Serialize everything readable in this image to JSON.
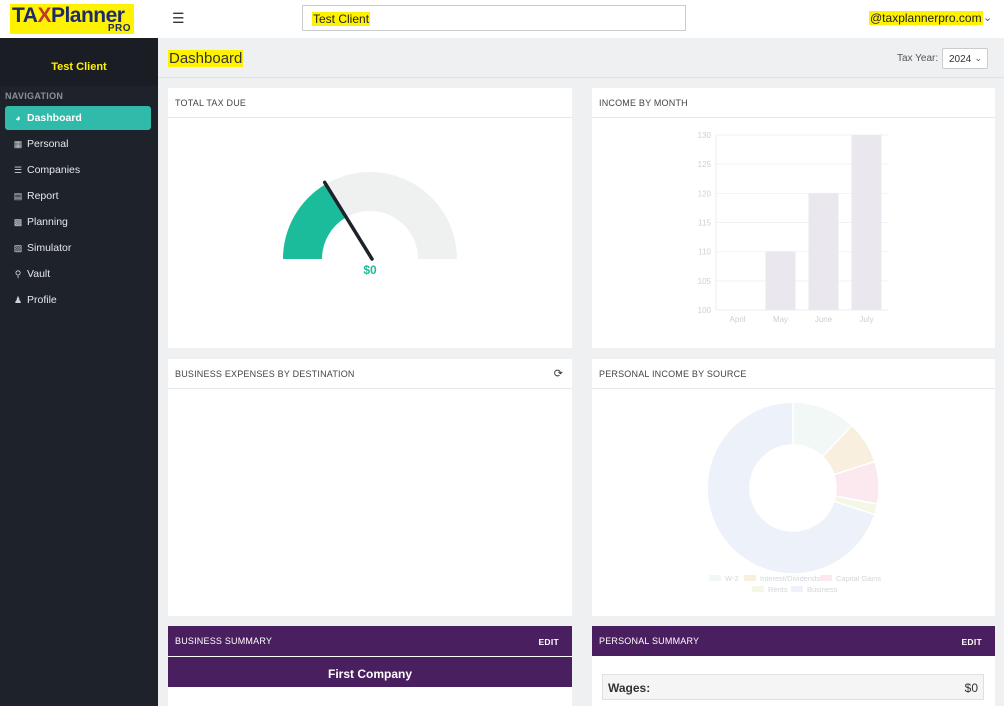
{
  "brand": {
    "logo_main_left": "TA",
    "logo_main_x": "X",
    "logo_main_right": "Planner",
    "logo_sub": "PRO"
  },
  "header": {
    "client_search_value": "Test Client",
    "user_email": "@taxplannerpro.com"
  },
  "sidebar": {
    "client_name": "Test Client",
    "nav_heading": "NAVIGATION",
    "items": [
      {
        "label": "Dashboard",
        "icon": "dashboard-icon",
        "active": true
      },
      {
        "label": "Personal",
        "icon": "table-icon",
        "active": false
      },
      {
        "label": "Companies",
        "icon": "list-icon",
        "active": false
      },
      {
        "label": "Report",
        "icon": "document-icon",
        "active": false
      },
      {
        "label": "Planning",
        "icon": "sitemap-icon",
        "active": false
      },
      {
        "label": "Simulator",
        "icon": "calculator-icon",
        "active": false
      },
      {
        "label": "Vault",
        "icon": "key-icon",
        "active": false
      },
      {
        "label": "Profile",
        "icon": "user-icon",
        "active": false
      }
    ]
  },
  "page": {
    "title": "Dashboard",
    "tax_year_label": "Tax Year:",
    "tax_year_value": "2024"
  },
  "panels": {
    "total_tax_due": {
      "title": "TOTAL TAX DUE",
      "gauge_value": "$0",
      "gauge_fill_fraction": 0.33
    },
    "income_by_month": {
      "title": "INCOME BY MONTH"
    },
    "business_expenses": {
      "title": "BUSINESS EXPENSES BY DESTINATION"
    },
    "personal_income": {
      "title": "PERSONAL INCOME BY SOURCE"
    },
    "business_summary": {
      "title": "BUSINESS SUMMARY",
      "edit": "EDIT",
      "company": "First Company"
    },
    "personal_summary": {
      "title": "PERSONAL SUMMARY",
      "edit": "EDIT",
      "wages_label": "Wages:",
      "wages_value": "$0"
    }
  },
  "chart_data": [
    {
      "type": "bar",
      "categories": [
        "April",
        "May",
        "June",
        "July"
      ],
      "values": [
        100,
        110,
        120,
        130
      ],
      "ylim": [
        100,
        130
      ],
      "yticks": [
        100,
        105,
        110,
        115,
        120,
        125,
        130
      ],
      "color": "#ebe7ef"
    },
    {
      "type": "pie",
      "labels": [
        "W-2",
        "Interest/Dividends",
        "Capital Gains",
        "Rents",
        "Business"
      ],
      "values": [
        12,
        8,
        8,
        2,
        70
      ],
      "colors": [
        "#f2f8f6",
        "#f8efde",
        "#fbe9ef",
        "#f4f6e6",
        "#edf2fa"
      ]
    }
  ]
}
